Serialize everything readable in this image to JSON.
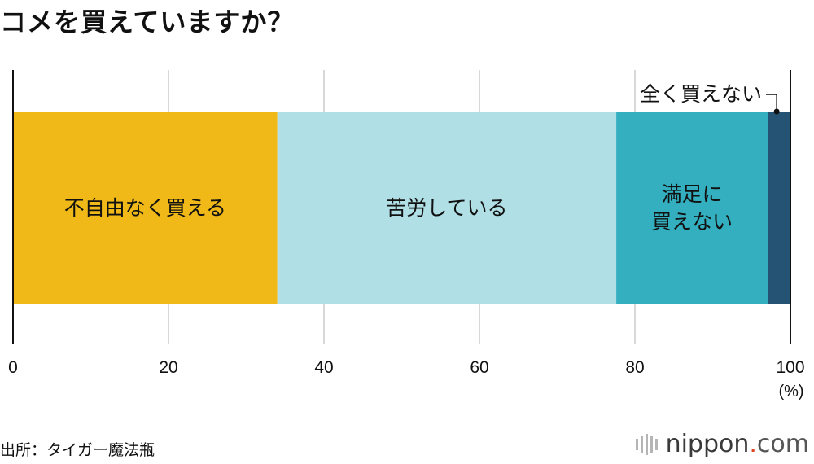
{
  "title": "コメを買えていますか？",
  "source": "出所：タイガー魔法瓶",
  "logo": {
    "name": "nippon",
    "dot": ".",
    "tld": "com"
  },
  "chart_data": {
    "type": "bar",
    "orientation": "horizontal-stacked-100",
    "title": "コメを買えていますか？",
    "xlim": [
      0,
      100
    ],
    "xticks": [
      0,
      20,
      40,
      60,
      80,
      100
    ],
    "unit": "(%)",
    "grid": true,
    "series": [
      {
        "name": "不自由なく買える",
        "label_lines": [
          "不自由なく買える"
        ],
        "value": 34.0,
        "color": "#f0b918"
      },
      {
        "name": "苦労している",
        "label_lines": [
          "苦労している"
        ],
        "value": 43.6,
        "color": "#b0dfe5"
      },
      {
        "name": "満足に買えない",
        "label_lines": [
          "満足に",
          "買えない"
        ],
        "value": 19.5,
        "color": "#33afbf"
      },
      {
        "name": "全く買えない",
        "label_lines": [],
        "callout": "全く買えない",
        "value": 2.9,
        "color": "#245373"
      }
    ]
  }
}
